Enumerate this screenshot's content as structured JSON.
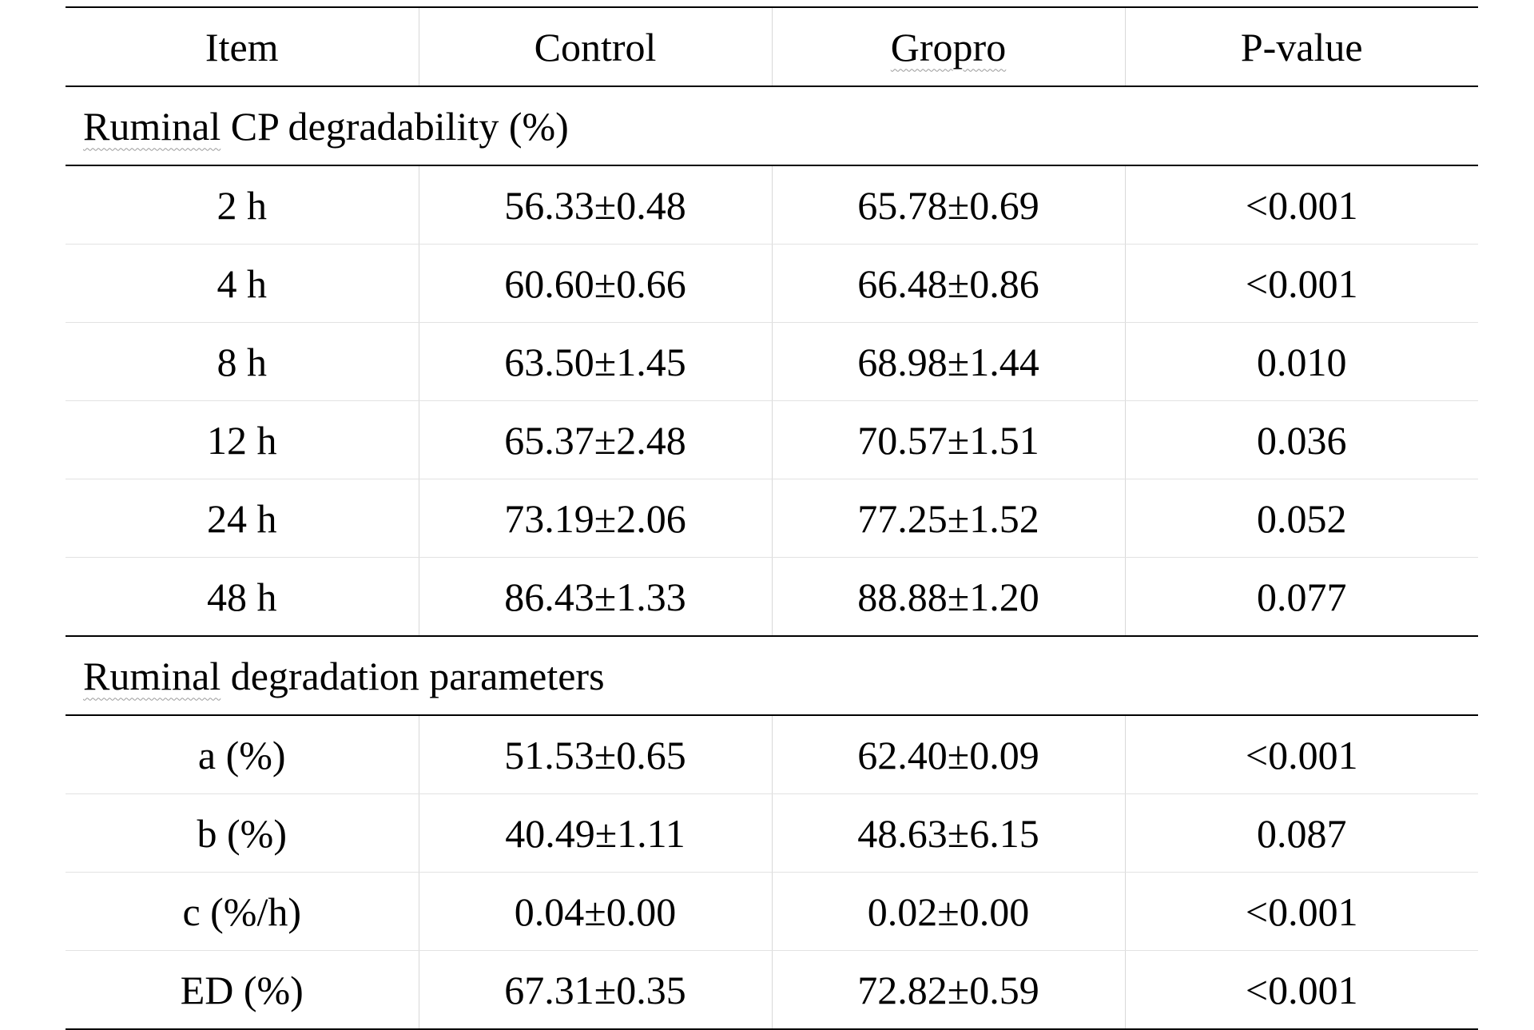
{
  "table": {
    "headers": [
      "Item",
      "Control",
      "Gropro",
      "P-value"
    ],
    "sections": [
      {
        "title": "Ruminal CP degradability (%)",
        "rows": [
          {
            "item": "2 h",
            "control": "56.33±0.48",
            "gropro": "65.78±0.69",
            "p_value": "<0.001"
          },
          {
            "item": "4 h",
            "control": "60.60±0.66",
            "gropro": "66.48±0.86",
            "p_value": "<0.001"
          },
          {
            "item": "8 h",
            "control": "63.50±1.45",
            "gropro": "68.98±1.44",
            "p_value": "0.010"
          },
          {
            "item": "12 h",
            "control": "65.37±2.48",
            "gropro": "70.57±1.51",
            "p_value": "0.036"
          },
          {
            "item": "24 h",
            "control": "73.19±2.06",
            "gropro": "77.25±1.52",
            "p_value": "0.052"
          },
          {
            "item": "48 h",
            "control": "86.43±1.33",
            "gropro": "88.88±1.20",
            "p_value": "0.077"
          }
        ]
      },
      {
        "title": "Ruminal degradation parameters",
        "rows": [
          {
            "item": "a (%)",
            "control": "51.53±0.65",
            "gropro": "62.40±0.09",
            "p_value": "<0.001"
          },
          {
            "item": "b (%)",
            "control": "40.49±1.11",
            "gropro": "48.63±6.15",
            "p_value": "0.087"
          },
          {
            "item": "c (%/h)",
            "control": "0.04±0.00",
            "gropro": "0.02±0.00",
            "p_value": "<0.001"
          },
          {
            "item": "ED (%)",
            "control": "67.31±0.35",
            "gropro": "72.82±0.59",
            "p_value": "<0.001"
          }
        ]
      }
    ]
  }
}
